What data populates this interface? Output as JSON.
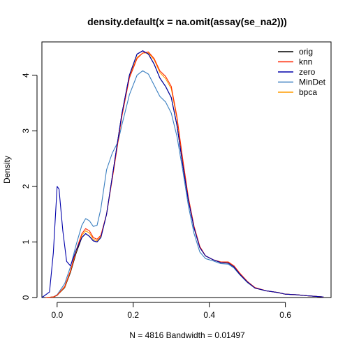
{
  "chart_data": {
    "type": "line",
    "title": "density.default(x = na.omit(assay(se_na2)))",
    "xlabel": "N = 4816   Bandwidth = 0.01497",
    "ylabel": "Density",
    "xlim": [
      -0.04,
      0.72
    ],
    "ylim": [
      0,
      4.6
    ],
    "x_ticks": [
      "0.0",
      "0.2",
      "0.4",
      "0.6"
    ],
    "y_ticks": [
      "0",
      "1",
      "2",
      "3",
      "4"
    ],
    "grid": false,
    "legend_position": "top-right",
    "series": [
      {
        "name": "orig",
        "color": "#000000",
        "points": [
          [
            -0.03,
            0
          ],
          [
            -0.01,
            0.01
          ],
          [
            0.0,
            0.04
          ],
          [
            0.02,
            0.18
          ],
          [
            0.035,
            0.45
          ],
          [
            0.05,
            0.8
          ],
          [
            0.065,
            1.08
          ],
          [
            0.075,
            1.15
          ],
          [
            0.085,
            1.1
          ],
          [
            0.095,
            1.02
          ],
          [
            0.105,
            1.0
          ],
          [
            0.115,
            1.08
          ],
          [
            0.13,
            1.5
          ],
          [
            0.15,
            2.4
          ],
          [
            0.17,
            3.3
          ],
          [
            0.19,
            4.0
          ],
          [
            0.21,
            4.38
          ],
          [
            0.225,
            4.44
          ],
          [
            0.24,
            4.38
          ],
          [
            0.255,
            4.2
          ],
          [
            0.27,
            3.95
          ],
          [
            0.285,
            3.8
          ],
          [
            0.3,
            3.6
          ],
          [
            0.315,
            3.1
          ],
          [
            0.33,
            2.4
          ],
          [
            0.345,
            1.75
          ],
          [
            0.36,
            1.25
          ],
          [
            0.375,
            0.9
          ],
          [
            0.39,
            0.75
          ],
          [
            0.41,
            0.68
          ],
          [
            0.43,
            0.63
          ],
          [
            0.45,
            0.62
          ],
          [
            0.465,
            0.55
          ],
          [
            0.48,
            0.42
          ],
          [
            0.5,
            0.28
          ],
          [
            0.52,
            0.17
          ],
          [
            0.55,
            0.12
          ],
          [
            0.58,
            0.09
          ],
          [
            0.6,
            0.06
          ],
          [
            0.63,
            0.05
          ],
          [
            0.66,
            0.03
          ],
          [
            0.7,
            0.01
          ]
        ]
      },
      {
        "name": "knn",
        "color": "#ff2500",
        "points": [
          [
            -0.03,
            0
          ],
          [
            -0.01,
            0.01
          ],
          [
            0.0,
            0.04
          ],
          [
            0.02,
            0.2
          ],
          [
            0.035,
            0.48
          ],
          [
            0.05,
            0.85
          ],
          [
            0.065,
            1.15
          ],
          [
            0.075,
            1.24
          ],
          [
            0.085,
            1.2
          ],
          [
            0.095,
            1.08
          ],
          [
            0.105,
            1.05
          ],
          [
            0.115,
            1.12
          ],
          [
            0.13,
            1.5
          ],
          [
            0.15,
            2.35
          ],
          [
            0.17,
            3.25
          ],
          [
            0.19,
            3.95
          ],
          [
            0.21,
            4.3
          ],
          [
            0.225,
            4.4
          ],
          [
            0.24,
            4.42
          ],
          [
            0.255,
            4.3
          ],
          [
            0.27,
            4.08
          ],
          [
            0.285,
            3.98
          ],
          [
            0.3,
            3.8
          ],
          [
            0.315,
            3.25
          ],
          [
            0.33,
            2.5
          ],
          [
            0.345,
            1.8
          ],
          [
            0.36,
            1.28
          ],
          [
            0.375,
            0.92
          ],
          [
            0.39,
            0.75
          ],
          [
            0.41,
            0.68
          ],
          [
            0.43,
            0.64
          ],
          [
            0.45,
            0.64
          ],
          [
            0.465,
            0.57
          ],
          [
            0.48,
            0.44
          ],
          [
            0.5,
            0.29
          ],
          [
            0.52,
            0.18
          ],
          [
            0.55,
            0.12
          ],
          [
            0.58,
            0.09
          ],
          [
            0.6,
            0.06
          ],
          [
            0.63,
            0.05
          ],
          [
            0.66,
            0.03
          ],
          [
            0.7,
            0.01
          ]
        ]
      },
      {
        "name": "zero",
        "color": "#0000aa",
        "points": [
          [
            -0.04,
            0
          ],
          [
            -0.02,
            0.1
          ],
          [
            -0.01,
            0.8
          ],
          [
            0.0,
            2.0
          ],
          [
            0.005,
            1.95
          ],
          [
            0.015,
            1.2
          ],
          [
            0.025,
            0.65
          ],
          [
            0.035,
            0.57
          ],
          [
            0.05,
            0.85
          ],
          [
            0.065,
            1.08
          ],
          [
            0.075,
            1.15
          ],
          [
            0.085,
            1.1
          ],
          [
            0.095,
            1.02
          ],
          [
            0.105,
            1.0
          ],
          [
            0.115,
            1.08
          ],
          [
            0.13,
            1.5
          ],
          [
            0.15,
            2.4
          ],
          [
            0.17,
            3.3
          ],
          [
            0.19,
            4.0
          ],
          [
            0.21,
            4.38
          ],
          [
            0.225,
            4.44
          ],
          [
            0.24,
            4.38
          ],
          [
            0.255,
            4.2
          ],
          [
            0.27,
            3.95
          ],
          [
            0.285,
            3.8
          ],
          [
            0.3,
            3.6
          ],
          [
            0.315,
            3.1
          ],
          [
            0.33,
            2.4
          ],
          [
            0.345,
            1.75
          ],
          [
            0.36,
            1.25
          ],
          [
            0.375,
            0.9
          ],
          [
            0.39,
            0.75
          ],
          [
            0.41,
            0.68
          ],
          [
            0.43,
            0.63
          ],
          [
            0.45,
            0.62
          ],
          [
            0.465,
            0.55
          ],
          [
            0.48,
            0.42
          ],
          [
            0.5,
            0.28
          ],
          [
            0.52,
            0.17
          ],
          [
            0.55,
            0.12
          ],
          [
            0.58,
            0.09
          ],
          [
            0.6,
            0.06
          ],
          [
            0.63,
            0.05
          ],
          [
            0.66,
            0.03
          ],
          [
            0.7,
            0.01
          ]
        ]
      },
      {
        "name": "MinDet",
        "color": "#3a7fc0",
        "points": [
          [
            -0.03,
            0
          ],
          [
            -0.01,
            0.01
          ],
          [
            0.0,
            0.05
          ],
          [
            0.02,
            0.25
          ],
          [
            0.035,
            0.55
          ],
          [
            0.05,
            0.95
          ],
          [
            0.065,
            1.3
          ],
          [
            0.075,
            1.42
          ],
          [
            0.085,
            1.38
          ],
          [
            0.095,
            1.28
          ],
          [
            0.105,
            1.3
          ],
          [
            0.115,
            1.6
          ],
          [
            0.13,
            2.3
          ],
          [
            0.145,
            2.6
          ],
          [
            0.16,
            2.8
          ],
          [
            0.17,
            3.1
          ],
          [
            0.19,
            3.65
          ],
          [
            0.21,
            4.0
          ],
          [
            0.225,
            4.08
          ],
          [
            0.24,
            4.02
          ],
          [
            0.255,
            3.82
          ],
          [
            0.27,
            3.62
          ],
          [
            0.285,
            3.52
          ],
          [
            0.3,
            3.32
          ],
          [
            0.315,
            2.9
          ],
          [
            0.33,
            2.3
          ],
          [
            0.345,
            1.65
          ],
          [
            0.36,
            1.15
          ],
          [
            0.375,
            0.82
          ],
          [
            0.39,
            0.7
          ],
          [
            0.41,
            0.66
          ],
          [
            0.43,
            0.61
          ],
          [
            0.45,
            0.6
          ],
          [
            0.465,
            0.53
          ],
          [
            0.48,
            0.41
          ],
          [
            0.5,
            0.27
          ],
          [
            0.52,
            0.17
          ],
          [
            0.55,
            0.12
          ],
          [
            0.58,
            0.09
          ],
          [
            0.6,
            0.06
          ],
          [
            0.63,
            0.05
          ],
          [
            0.66,
            0.03
          ],
          [
            0.7,
            0.01
          ]
        ]
      },
      {
        "name": "bpca",
        "color": "#ff9b00",
        "points": [
          [
            -0.03,
            0
          ],
          [
            -0.01,
            0.01
          ],
          [
            0.0,
            0.04
          ],
          [
            0.02,
            0.19
          ],
          [
            0.035,
            0.47
          ],
          [
            0.05,
            0.83
          ],
          [
            0.065,
            1.12
          ],
          [
            0.075,
            1.2
          ],
          [
            0.085,
            1.16
          ],
          [
            0.095,
            1.05
          ],
          [
            0.105,
            1.02
          ],
          [
            0.115,
            1.1
          ],
          [
            0.13,
            1.5
          ],
          [
            0.15,
            2.38
          ],
          [
            0.17,
            3.28
          ],
          [
            0.19,
            3.97
          ],
          [
            0.21,
            4.32
          ],
          [
            0.225,
            4.4
          ],
          [
            0.24,
            4.4
          ],
          [
            0.255,
            4.28
          ],
          [
            0.27,
            4.05
          ],
          [
            0.285,
            3.94
          ],
          [
            0.3,
            3.76
          ],
          [
            0.315,
            3.22
          ],
          [
            0.33,
            2.48
          ],
          [
            0.345,
            1.79
          ],
          [
            0.36,
            1.27
          ],
          [
            0.375,
            0.91
          ],
          [
            0.39,
            0.75
          ],
          [
            0.41,
            0.68
          ],
          [
            0.43,
            0.64
          ],
          [
            0.45,
            0.63
          ],
          [
            0.465,
            0.56
          ],
          [
            0.48,
            0.43
          ],
          [
            0.5,
            0.28
          ],
          [
            0.52,
            0.17
          ],
          [
            0.55,
            0.12
          ],
          [
            0.58,
            0.09
          ],
          [
            0.6,
            0.06
          ],
          [
            0.63,
            0.05
          ],
          [
            0.66,
            0.03
          ],
          [
            0.7,
            0.01
          ]
        ]
      }
    ]
  }
}
